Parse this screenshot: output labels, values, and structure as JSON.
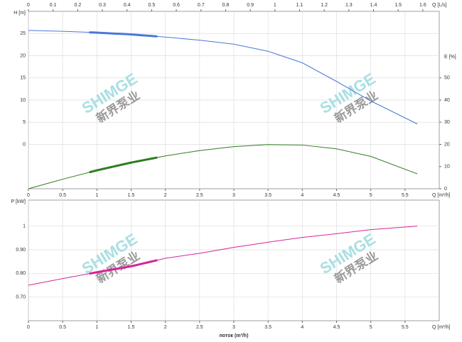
{
  "chart_data": [
    {
      "type": "line",
      "x2label": "Q [L/s]",
      "x2lim": [
        0,
        1.6667
      ],
      "x2ticks": [
        0,
        0.1,
        0.2,
        0.3,
        0.4,
        0.5,
        0.6,
        0.7,
        0.8,
        0.9,
        1,
        1.1,
        1.2,
        1.3,
        1.4,
        1.5,
        1.6
      ],
      "xunit": "Q [m³/h]",
      "xlim": [
        0,
        6
      ],
      "xticks": [
        0,
        0.5,
        1,
        1.5,
        2,
        2.5,
        3,
        3.5,
        4,
        4.5,
        5,
        5.5
      ],
      "ylabel": "H [m]",
      "ylim": [
        -10,
        30
      ],
      "yticks": [
        0,
        5,
        10,
        15,
        20,
        25
      ],
      "y2label": "E [%]",
      "y2lim": [
        0,
        80
      ],
      "y2ticks": [
        0,
        10,
        20,
        30,
        40,
        50
      ],
      "grid": true,
      "highlight": [
        0.9,
        1.87
      ],
      "x": [
        0,
        0.5,
        1,
        1.5,
        2,
        2.5,
        3,
        3.5,
        4,
        4.5,
        5,
        5.68
      ],
      "series": [
        {
          "color": "#4a78d8",
          "values": [
            25.7,
            25.5,
            25.2,
            24.8,
            24.2,
            23.5,
            22.6,
            21.0,
            18.4,
            14.2,
            9.8,
            4.6
          ]
        },
        {
          "color": "#2e7d1f",
          "axis": "y2",
          "values": [
            0,
            4.3,
            8.3,
            11.8,
            14.8,
            17.2,
            19.0,
            19.9,
            19.7,
            18.0,
            14.6,
            6.7
          ]
        }
      ]
    },
    {
      "type": "line",
      "xunit": "Q [m³/h]",
      "xlabel": "поток (m³/h)",
      "xlim": [
        0,
        6
      ],
      "xticks": [
        0,
        0.5,
        1,
        1.5,
        2,
        2.5,
        3,
        3.5,
        4,
        4.5,
        5,
        5.5
      ],
      "ylabel": "P [kW]",
      "ylim": [
        0.6,
        1.11
      ],
      "yticks": [
        {
          "value": 0.7,
          "label": "0.70"
        },
        {
          "value": 0.8,
          "label": "0.80"
        },
        {
          "value": 0.9,
          "label": "0.90"
        },
        1
      ],
      "grid": true,
      "highlight": [
        0.9,
        1.87
      ],
      "x": [
        0,
        0.5,
        1,
        1.5,
        2,
        2.5,
        3,
        3.5,
        4,
        4.5,
        5,
        5.68
      ],
      "series": [
        {
          "color": "#d6249a",
          "values": [
            0.75,
            0.778,
            0.805,
            0.83,
            0.864,
            0.885,
            0.91,
            0.932,
            0.952,
            0.968,
            0.985,
            1.0
          ]
        }
      ]
    }
  ],
  "watermark": {
    "brand": "SHIMGE",
    "cn": "新界泵业"
  }
}
